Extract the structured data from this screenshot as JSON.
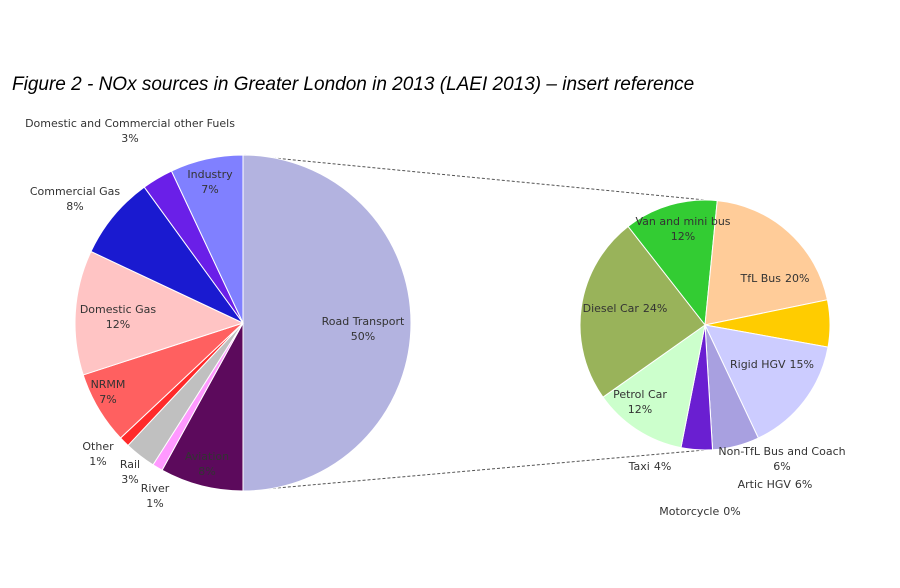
{
  "title": "Figure 2 - NOx sources in Greater London in 2013 (LAEI 2013) – insert reference",
  "chart_data": [
    {
      "type": "pie",
      "categories": [
        "Road Transport",
        "Aviation",
        "River",
        "Rail",
        "Other",
        "NRMM",
        "Domestic Gas",
        "Commercial Gas",
        "Domestic and Commercial other Fuels",
        "Industry"
      ],
      "values": [
        50,
        8,
        1,
        3,
        1,
        7,
        12,
        8,
        3,
        7
      ],
      "value_labels": [
        "50%",
        "8%",
        "1%",
        "3%",
        "1%",
        "7%",
        "12%",
        "8%",
        "3%",
        "7%"
      ],
      "colors": [
        "#b3b3e0",
        "#5c0a5c",
        "#ff99ff",
        "#c0c0c0",
        "#ff2a2a",
        "#ff6060",
        "#ffc4c4",
        "#1a1ad0",
        "#6a1fe8",
        "#8080ff"
      ]
    },
    {
      "type": "pie",
      "categories": [
        "Van and mini bus",
        "TfL Bus",
        "Non-TfL Bus and Coach",
        "Rigid HGV",
        "Artic HGV",
        "Motorcycle",
        "Taxi",
        "Petrol Car",
        "Diesel Car"
      ],
      "values": [
        12,
        20,
        6,
        15,
        6,
        0,
        4,
        12,
        24
      ],
      "value_labels": [
        "12%",
        "20%",
        "6%",
        "15%",
        "6%",
        "0%",
        "4%",
        "12%",
        "24%"
      ],
      "colors": [
        "#33cc33",
        "#ffcc99",
        "#ffcc00",
        "#ccccff",
        "#a8a0e0",
        "#666666",
        "#6a1fd1",
        "#ccffcc",
        "#99b35a"
      ]
    }
  ]
}
